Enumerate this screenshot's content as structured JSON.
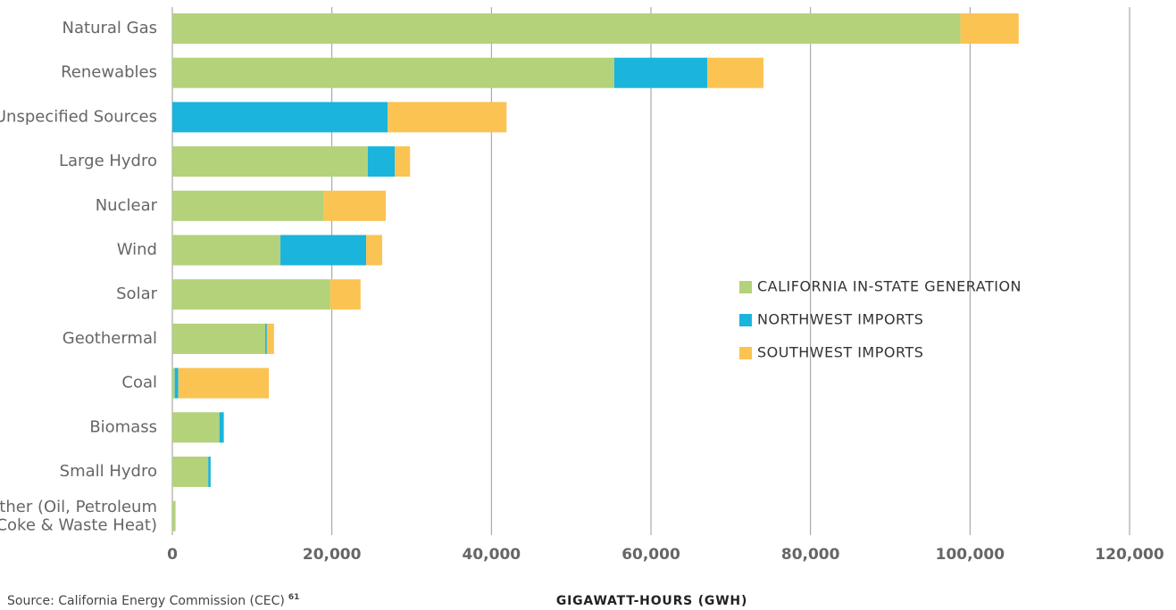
{
  "chart_data": {
    "type": "stacked_barh",
    "categories": [
      "Natural Gas",
      "Renewables",
      "Unspecified Sources",
      "Large Hydro",
      "Nuclear",
      "Wind",
      "Solar",
      "Geothermal",
      "Coal",
      "Biomass",
      "Small Hydro",
      "Other (Oil, Petroleum Coke & Waste Heat)"
    ],
    "series": [
      {
        "name": "CALIFORNIA IN-STATE GENERATION",
        "color": "#b3d27a",
        "values": [
          98800,
          55400,
          0,
          24500,
          19000,
          13550,
          19800,
          11650,
          300,
          5900,
          4500,
          400
        ]
      },
      {
        "name": "NORTHWEST IMPORTS",
        "color": "#1ab4dc",
        "values": [
          0,
          11650,
          27000,
          3400,
          0,
          10750,
          0,
          200,
          450,
          550,
          300,
          0
        ]
      },
      {
        "name": "SOUTHWEST IMPORTS",
        "color": "#fbc352",
        "values": [
          7300,
          7050,
          14900,
          1900,
          7750,
          2000,
          3800,
          900,
          11350,
          0,
          0,
          0
        ]
      }
    ],
    "xlim": [
      0,
      120000
    ],
    "xticks": [
      0,
      {
        "value": 20000,
        "label": "20,000"
      },
      {
        "value": 40000,
        "label": "40,000"
      },
      {
        "value": 60000,
        "label": "60,000"
      },
      {
        "value": 80000,
        "label": "80,000"
      },
      {
        "value": 100000,
        "label": "100,000"
      },
      {
        "value": 120000,
        "label": "120,000"
      }
    ],
    "grid": true,
    "xlabel": "GIGAWATT-HOURS (GWH)",
    "source": "Source: California Energy Commission (CEC)",
    "source_note": "61"
  }
}
